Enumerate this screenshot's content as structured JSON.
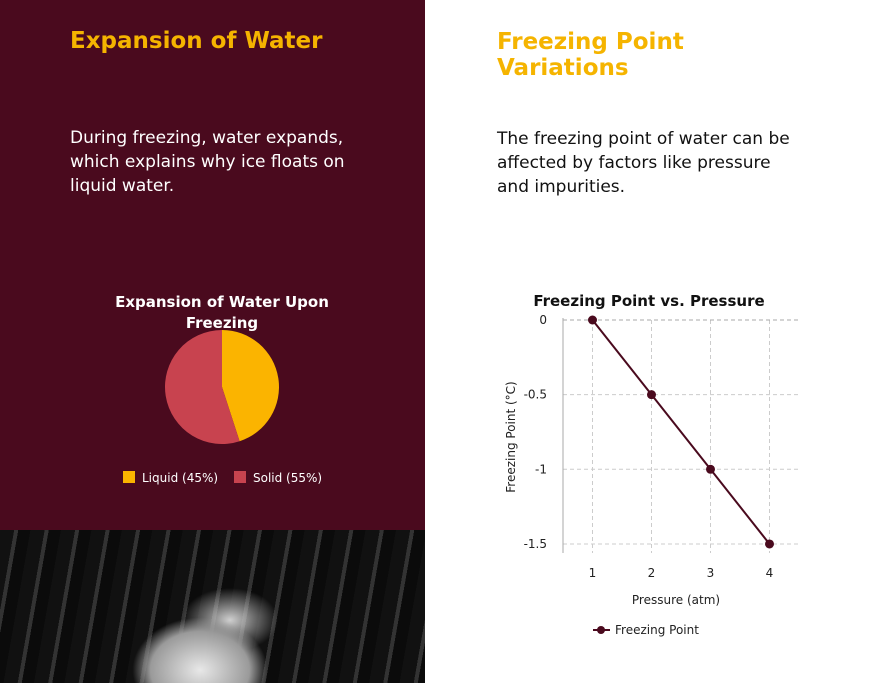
{
  "left": {
    "title": "Expansion of Water",
    "body": "During freezing, water expands, which explains why ice floats on liquid water."
  },
  "right": {
    "title": "Freezing Point Variations",
    "body": "The freezing point of water can be affected by factors like pressure and impurities."
  },
  "chart_data": [
    {
      "type": "pie",
      "title": "Expansion of Water Upon Freezing",
      "categories": [
        "Liquid (45%)",
        "Solid (55%)"
      ],
      "values": [
        45,
        55
      ],
      "colors": [
        "#fbb400",
        "#c8434f"
      ],
      "legend": "bottom"
    },
    {
      "type": "line",
      "title": "Freezing Point vs. Pressure",
      "xlabel": "Pressure (atm)",
      "ylabel": "Freezing Point (°C)",
      "x": [
        1,
        2,
        3,
        4
      ],
      "series": [
        {
          "name": "Freezing Point",
          "values": [
            0,
            -0.5,
            -1,
            -1.5
          ],
          "color": "#4a0a1e"
        }
      ],
      "yticks": [
        "0",
        "-0.5",
        "-1",
        "-1.5"
      ],
      "xticks": [
        "1",
        "2",
        "3",
        "4"
      ],
      "ylim": [
        -1.5,
        0
      ],
      "grid": true,
      "legend": "bottom"
    }
  ]
}
